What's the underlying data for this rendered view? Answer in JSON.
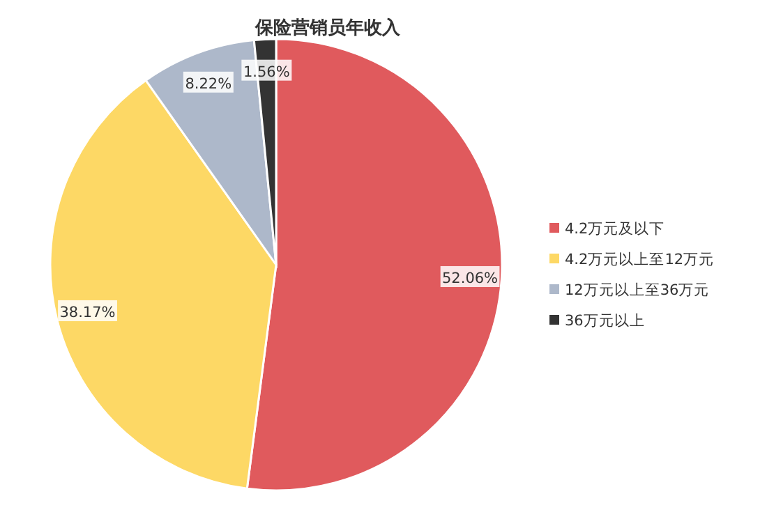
{
  "chart_data": {
    "type": "pie",
    "title": "保险营销员年收入",
    "categories": [
      "4.2万元及以下",
      "4.2万元以上至12万元",
      "12万元以上至36万元",
      "36万元以上"
    ],
    "values": [
      52.06,
      38.17,
      8.22,
      1.56
    ],
    "colors": [
      "#e05a5d",
      "#fdd865",
      "#adb8ca",
      "#333333"
    ],
    "value_labels": [
      "52.06%",
      "38.17%",
      "8.22%",
      "1.56%"
    ],
    "legend": "right"
  }
}
